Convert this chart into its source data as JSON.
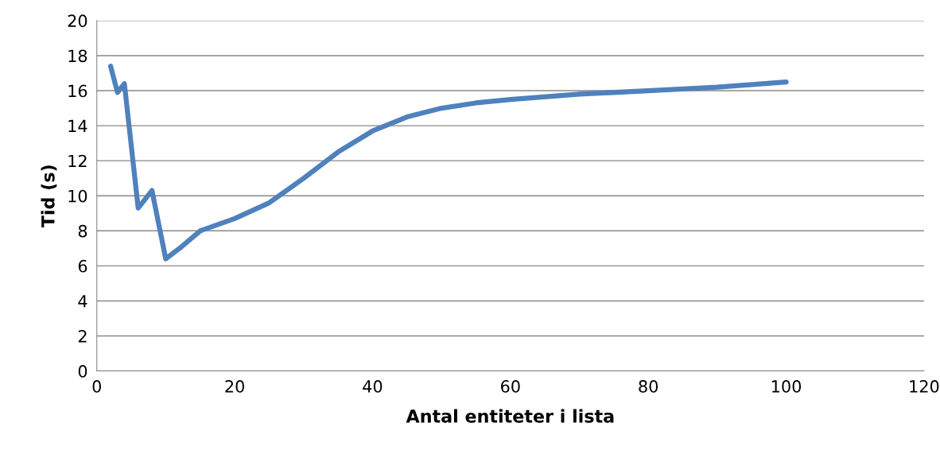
{
  "chart_data": {
    "type": "line",
    "xlabel": "Antal entiteter i lista",
    "ylabel": "Tid (s)",
    "x": [
      2,
      3,
      4,
      6,
      8,
      10,
      12,
      15,
      20,
      25,
      30,
      35,
      40,
      45,
      50,
      55,
      60,
      70,
      80,
      90,
      100
    ],
    "series": [
      {
        "color": "#4f81bd",
        "values": [
          17.4,
          15.9,
          16.4,
          9.3,
          10.3,
          6.4,
          7.0,
          8.0,
          8.7,
          9.6,
          11.0,
          12.5,
          13.7,
          14.5,
          15.0,
          15.3,
          15.5,
          15.8,
          16.0,
          16.2,
          16.5
        ]
      }
    ],
    "xlim": [
      0,
      120
    ],
    "xticks": [
      0,
      20,
      40,
      60,
      80,
      100,
      120
    ],
    "ylim": [
      0,
      20
    ],
    "yticks": [
      0,
      2,
      4,
      6,
      8,
      10,
      12,
      14,
      16,
      18,
      20
    ],
    "grid": "y",
    "marker": "none",
    "line_style": "solid"
  }
}
